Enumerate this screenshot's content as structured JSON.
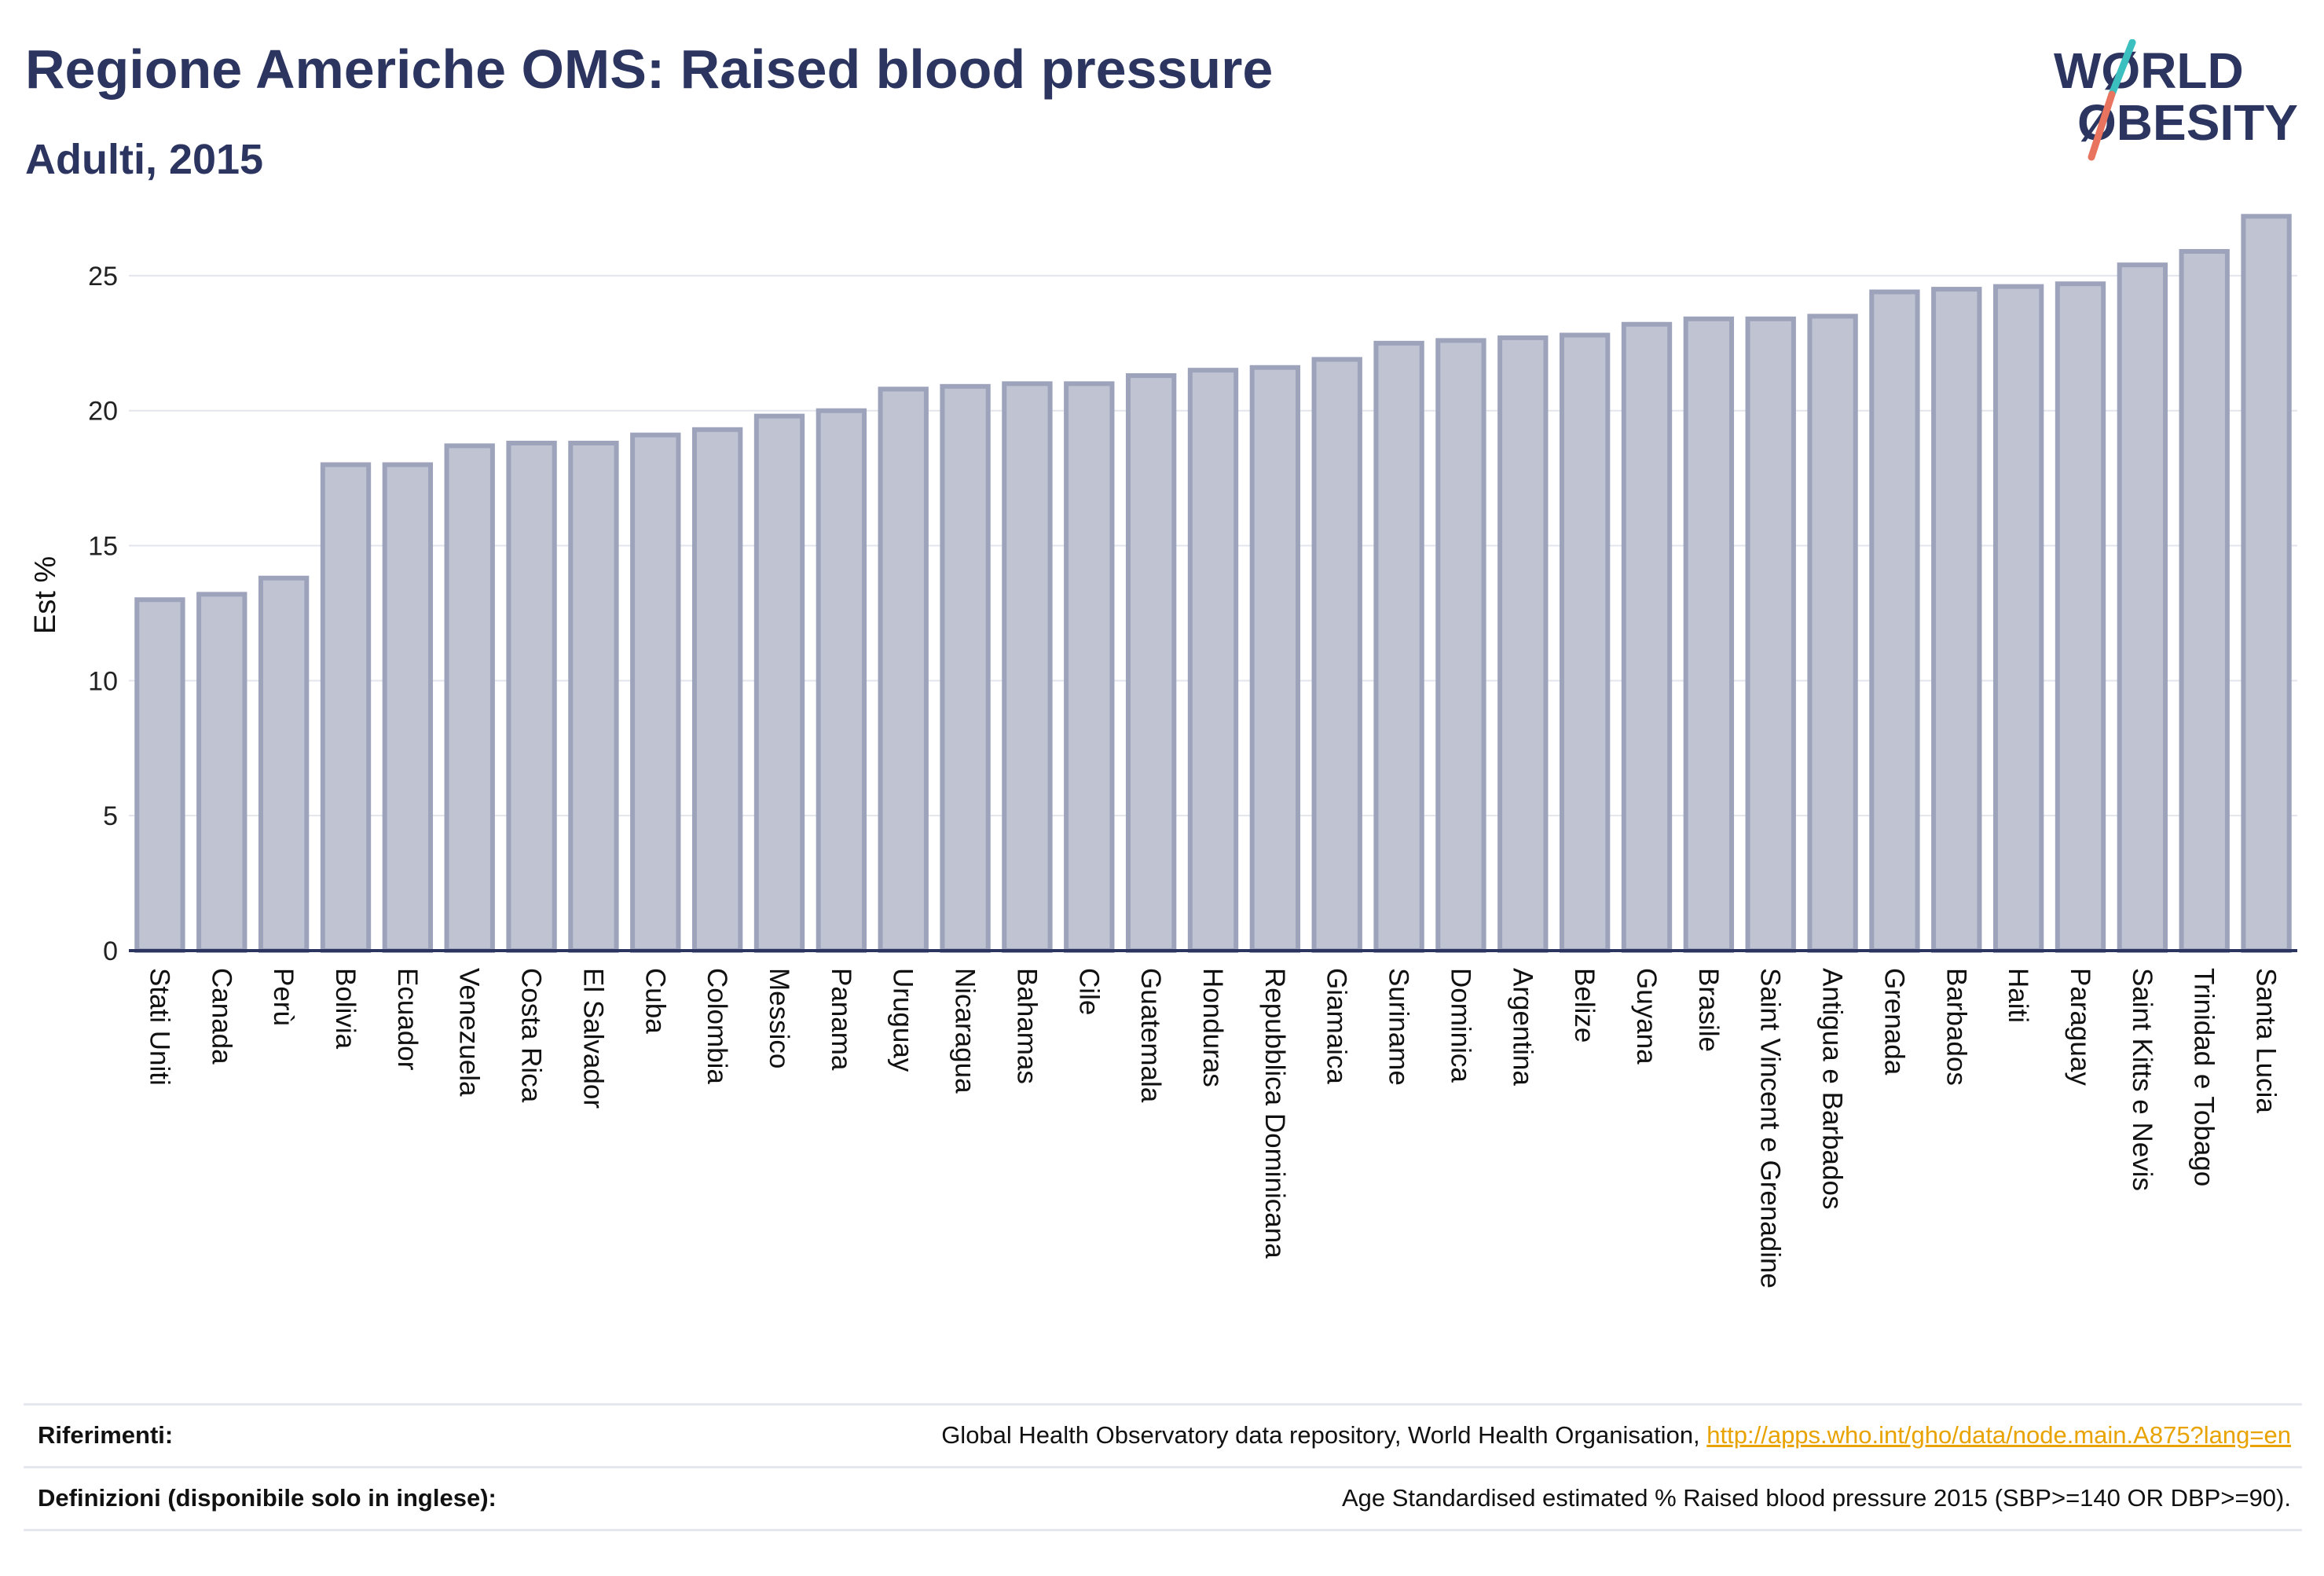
{
  "header": {
    "title": "Regione Americhe OMS: Raised blood pressure",
    "subtitle": "Adulti, 2015"
  },
  "logo": {
    "line1": "WØRLD",
    "line2": "ØBESITY",
    "text_color": "#2c3560",
    "slash_teal": "#3bbfbf",
    "slash_coral": "#e8735f"
  },
  "colors": {
    "bar_fill": "#c0c3d2",
    "bar_stroke": "#9ea3bc",
    "axis": "#2c3560",
    "grid": "#e3e5ec",
    "title": "#2c3560"
  },
  "chart_data": {
    "type": "bar",
    "ylabel": "Est %",
    "xlabel": "",
    "ylim": [
      0,
      27.5
    ],
    "yticks": [
      0,
      5,
      10,
      15,
      20,
      25
    ],
    "grid": true,
    "categories": [
      "Stati Uniti",
      "Canada",
      "Perù",
      "Bolivia",
      "Ecuador",
      "Venezuela",
      "Costa Rica",
      "El Salvador",
      "Cuba",
      "Colombia",
      "Messico",
      "Panama",
      "Uruguay",
      "Nicaragua",
      "Bahamas",
      "Cile",
      "Guatemala",
      "Honduras",
      "Repubblica Dominicana",
      "Giamaica",
      "Suriname",
      "Dominica",
      "Argentina",
      "Belize",
      "Guyana",
      "Brasile",
      "Saint Vincent e Grenadine",
      "Antigua e Barbados",
      "Grenada",
      "Barbados",
      "Haiti",
      "Paraguay",
      "Saint Kitts e Nevis",
      "Trinidad e Tobago",
      "Santa Lucia"
    ],
    "values": [
      13.0,
      13.2,
      13.8,
      18.0,
      18.0,
      18.7,
      18.8,
      18.8,
      19.1,
      19.3,
      19.8,
      20.0,
      20.8,
      20.9,
      21.0,
      21.0,
      21.3,
      21.5,
      21.6,
      21.9,
      22.5,
      22.6,
      22.7,
      22.8,
      23.2,
      23.4,
      23.4,
      23.5,
      24.4,
      24.5,
      24.6,
      24.7,
      25.4,
      25.9,
      27.2
    ]
  },
  "footer": {
    "references_label": "Riferimenti:",
    "references_text": "Global Health Observatory data repository, World Health Organisation, ",
    "references_link": "http://apps.who.int/gho/data/node.main.A875?lang=en",
    "definitions_label": "Definizioni (disponibile solo in inglese):",
    "definitions_text": "Age Standardised estimated % Raised blood pressure 2015 (SBP>=140 OR DBP>=90)."
  }
}
